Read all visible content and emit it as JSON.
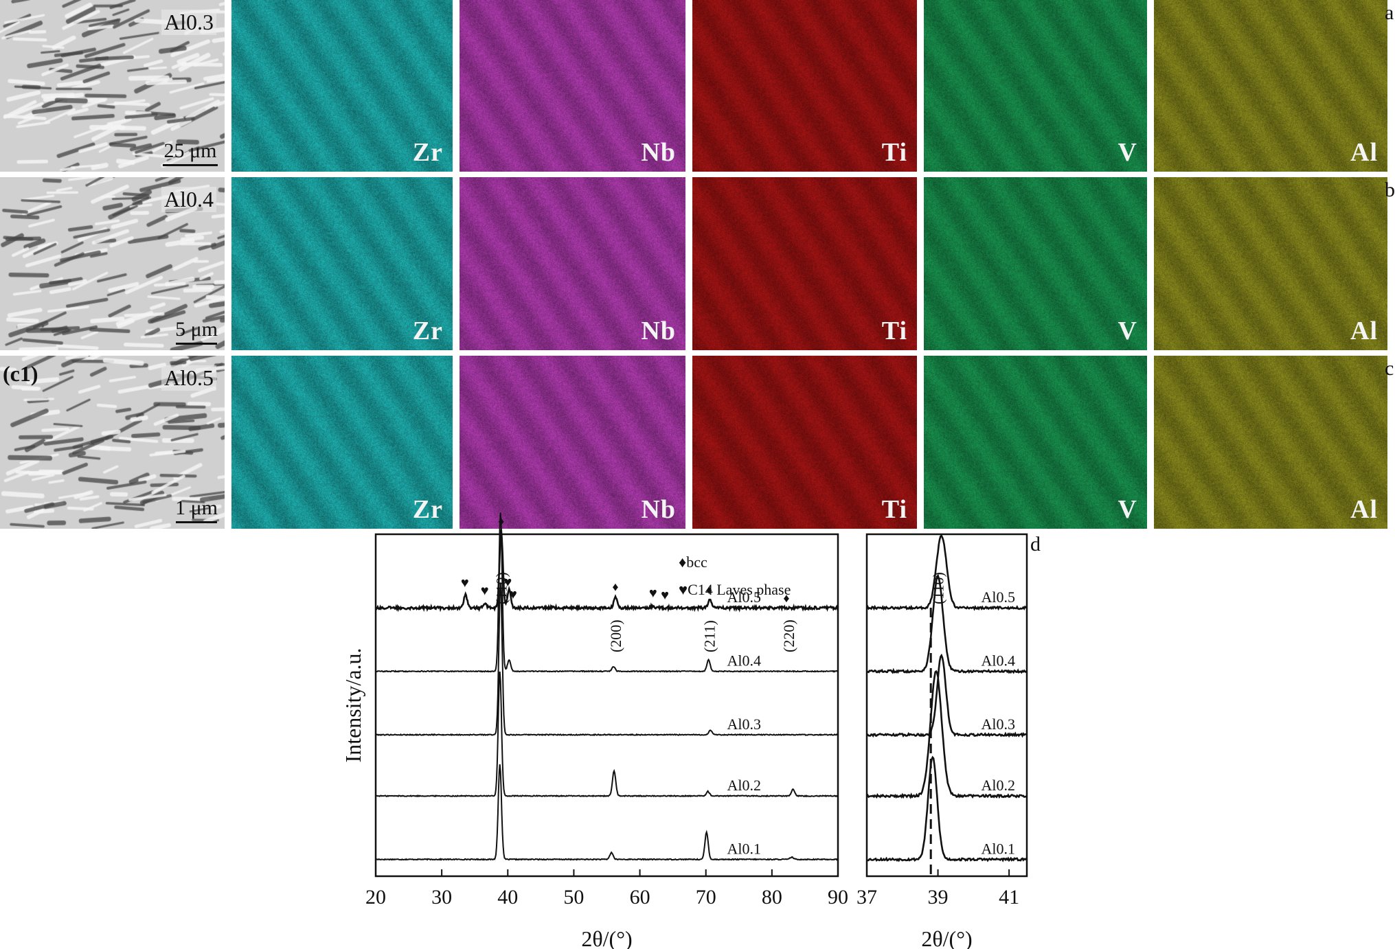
{
  "rows": [
    {
      "letter": "a",
      "sample": "Al0.3",
      "sub_label": "",
      "scale_bar": "25 μm"
    },
    {
      "letter": "b",
      "sample": "Al0.4",
      "sub_label": "",
      "scale_bar": "5 μm"
    },
    {
      "letter": "c",
      "sample": "Al0.5",
      "sub_label": "(c1)",
      "scale_bar": "1 μm"
    }
  ],
  "elements": [
    {
      "symbol": "Zr",
      "color": "#1fb4b4"
    },
    {
      "symbol": "Nb",
      "color": "#b43cb4"
    },
    {
      "symbol": "Ti",
      "color": "#a81414"
    },
    {
      "symbol": "V",
      "color": "#199650"
    },
    {
      "symbol": "Al",
      "color": "#8c8c1e"
    }
  ],
  "panel_d_label": "d",
  "chart_data": [
    {
      "type": "line",
      "xlabel": "2θ/(°)",
      "ylabel": "Intensity/a.u.",
      "xlim": [
        20,
        90
      ],
      "xticks": [
        20,
        30,
        40,
        50,
        60,
        70,
        80,
        90
      ],
      "legend": [
        {
          "marker": "♦",
          "text": "bcc"
        },
        {
          "marker": "♥",
          "text": "C14 Laves phase"
        }
      ],
      "peak_labels": [
        {
          "text": "(110)",
          "x": 39.0
        },
        {
          "text": "(200)",
          "x": 56.3
        },
        {
          "text": "(211)",
          "x": 70.5
        },
        {
          "text": "(220)",
          "x": 82.5
        }
      ],
      "bcc_markers": [
        39.0,
        56.3,
        70.5,
        82.2
      ],
      "laves_markers": [
        33.5,
        36.5,
        40.0,
        40.8,
        62.0,
        63.8
      ],
      "series": [
        {
          "name": "Al0.1",
          "baseline": 0.05,
          "peaks": [
            [
              38.8,
              0.42
            ],
            [
              55.7,
              0.03
            ],
            [
              70.1,
              0.12
            ],
            [
              83.0,
              0.01
            ]
          ]
        },
        {
          "name": "Al0.2",
          "baseline": 0.33,
          "peaks": [
            [
              38.8,
              0.55
            ],
            [
              56.1,
              0.11
            ],
            [
              70.3,
              0.02
            ],
            [
              83.2,
              0.03
            ]
          ]
        },
        {
          "name": "Al0.3",
          "baseline": 0.6,
          "peaks": [
            [
              38.9,
              0.67
            ],
            [
              70.7,
              0.02
            ]
          ]
        },
        {
          "name": "Al0.4",
          "baseline": 0.88,
          "peaks": [
            [
              38.9,
              0.7
            ],
            [
              40.2,
              0.05
            ],
            [
              56.0,
              0.02
            ],
            [
              70.4,
              0.05
            ]
          ]
        },
        {
          "name": "Al0.5",
          "baseline": 1.16,
          "peaks": [
            [
              39.0,
              0.34
            ],
            [
              33.6,
              0.06
            ],
            [
              36.5,
              0.02
            ],
            [
              40.2,
              0.08
            ],
            [
              56.3,
              0.05
            ],
            [
              62.0,
              0.01
            ],
            [
              70.6,
              0.04
            ]
          ]
        }
      ]
    },
    {
      "type": "line",
      "xlabel": "2θ/(°)",
      "xlim": [
        37,
        41.5
      ],
      "xticks": [
        37,
        39,
        41
      ],
      "peak_label": "(110)",
      "dashed_x": 38.8,
      "series": [
        {
          "name": "Al0.1",
          "baseline": 0.05,
          "center": 38.85,
          "height": 0.45,
          "width": 0.18
        },
        {
          "name": "Al0.2",
          "baseline": 0.33,
          "center": 38.95,
          "height": 0.55,
          "width": 0.22
        },
        {
          "name": "Al0.3",
          "baseline": 0.6,
          "center": 39.1,
          "height": 0.35,
          "width": 0.17
        },
        {
          "name": "Al0.4",
          "baseline": 0.88,
          "center": 39.0,
          "height": 0.42,
          "width": 0.2
        },
        {
          "name": "Al0.5",
          "baseline": 1.16,
          "center": 39.1,
          "height": 0.32,
          "width": 0.2
        }
      ]
    }
  ]
}
